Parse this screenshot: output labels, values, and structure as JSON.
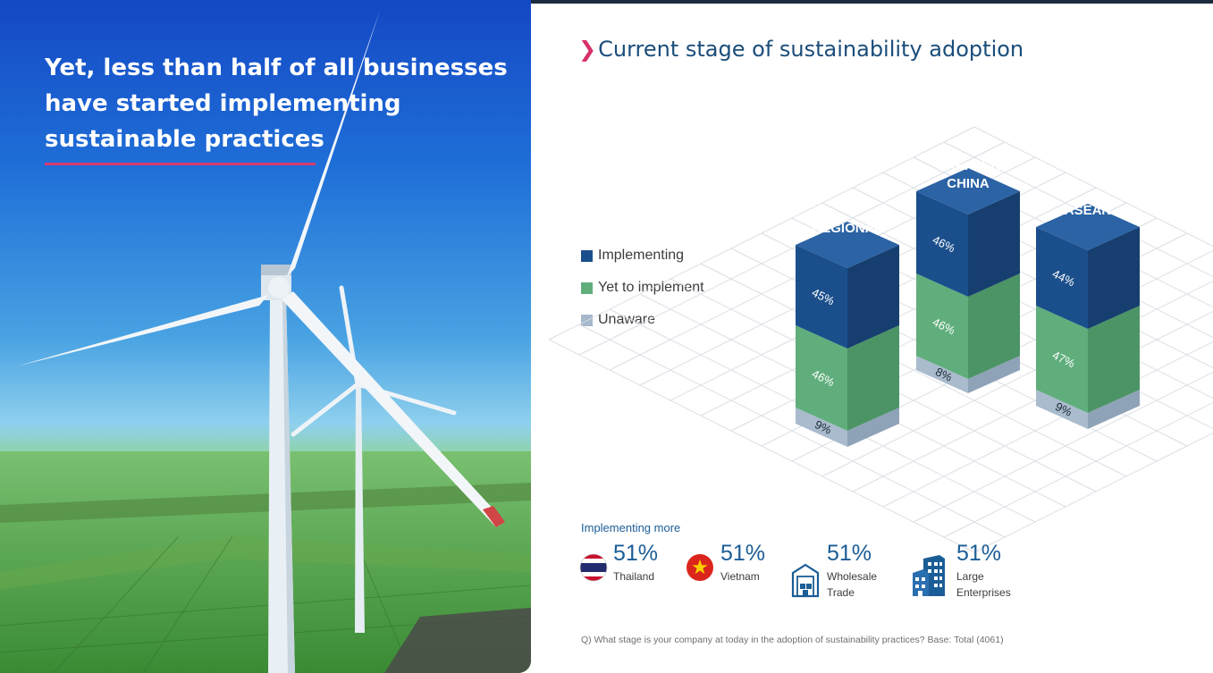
{
  "hero": {
    "title": "Yet, less than half of all businesses\nhave started implementing\nsustainable practices"
  },
  "chart_title": "Current stage of sustainability adoption",
  "chart_data": {
    "type": "bar",
    "subtype": "stacked-3d",
    "categories": [
      "REGIONAL",
      "GREATER CHINA",
      "ASEAN"
    ],
    "series": [
      {
        "name": "Unaware",
        "values": [
          9,
          8,
          9
        ]
      },
      {
        "name": "Yet to implement",
        "values": [
          46,
          46,
          47
        ]
      },
      {
        "name": "Implementing",
        "values": [
          45,
          46,
          44
        ]
      }
    ],
    "value_suffix": "%",
    "legend_position": "left",
    "grid": true
  },
  "legend": [
    {
      "label": "Implementing",
      "color": "#1b4f8c"
    },
    {
      "label": "Yet to implement",
      "color": "#5fae7c"
    },
    {
      "label": "Unaware",
      "color": "#a5b8cc"
    }
  ],
  "colors": {
    "implementing_front": "#1b4f8c",
    "implementing_side": "#163f6f",
    "implementing_top": "#2b63a4",
    "yet_front": "#5fae7c",
    "yet_side": "#4c9466",
    "unaware_front": "#a9bbcd",
    "unaware_side": "#8fa3b8",
    "accent": "#d6306a",
    "brand_blue": "#1b5d96"
  },
  "implementing_more": {
    "label": "Implementing more",
    "items": [
      {
        "pct": "51%",
        "name": "Thailand",
        "icon": "thailand-flag-icon"
      },
      {
        "pct": "51%",
        "name": "Vietnam",
        "icon": "vietnam-flag-icon"
      },
      {
        "pct": "51%",
        "name": "Wholesale\nTrade",
        "icon": "warehouse-icon"
      },
      {
        "pct": "51%",
        "name": "Large\nEnterprises",
        "icon": "office-buildings-icon"
      }
    ]
  },
  "footnote": "Q) What stage is your company at today in the adoption of sustainability practices? Base: Total (4061)"
}
